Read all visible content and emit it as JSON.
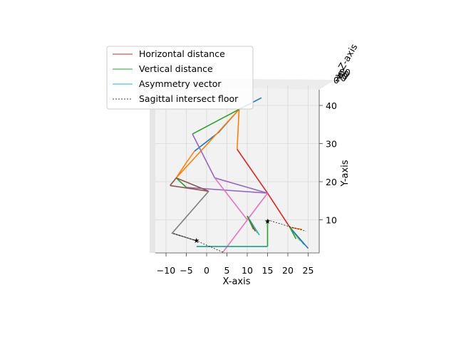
{
  "chart_data": {
    "type": "line",
    "projection": "3d",
    "title": "",
    "xlabel": "X-axis",
    "ylabel": "Y-axis",
    "zlabel": "Z-axis",
    "xlim": [
      -13,
      27
    ],
    "ylim": [
      0,
      45
    ],
    "xticks": [
      "−10",
      "−5",
      "0",
      "5",
      "10",
      "15",
      "20",
      "25"
    ],
    "xtick_values": [
      -10,
      -5,
      0,
      5,
      10,
      15,
      20,
      25
    ],
    "yticks": [
      "10",
      "20",
      "30",
      "40"
    ],
    "ytick_values": [
      10,
      20,
      30,
      40
    ],
    "zticks": [
      "0",
      "20",
      "40",
      "60",
      "80"
    ],
    "grid": true,
    "legend": {
      "placement": "upper-left",
      "entries": [
        {
          "label": "Horizontal distance",
          "color": "#d62728",
          "style": "solid"
        },
        {
          "label": "Vertical distance",
          "color": "#2ca02c",
          "style": "solid"
        },
        {
          "label": "Asymmetry vector",
          "color": "#17becf",
          "style": "solid"
        },
        {
          "label": "Sagittal intersect floor",
          "color": "#000000",
          "style": "dashed"
        }
      ]
    },
    "series": [
      {
        "color": "#1f77b4",
        "points": [
          [
            -3,
            28
          ],
          [
            3,
            33
          ],
          [
            8,
            39
          ],
          [
            13.5,
            42
          ]
        ]
      },
      {
        "color": "#ff7f0e",
        "points": [
          [
            -3,
            28
          ],
          [
            -5,
            25
          ],
          [
            -7.5,
            21
          ],
          [
            8,
            39
          ],
          [
            7.5,
            28.5
          ]
        ]
      },
      {
        "color": "#2ca02c",
        "points": [
          [
            -3.5,
            32.5
          ],
          [
            8,
            39
          ]
        ]
      },
      {
        "color": "#2ca02c",
        "points": [
          [
            -7.5,
            21
          ],
          [
            -5,
            18.5
          ]
        ]
      },
      {
        "color": "#d62728",
        "points": [
          [
            7.5,
            28.5
          ],
          [
            15,
            17
          ],
          [
            20.5,
            8
          ]
        ]
      },
      {
        "color": "#9467bd",
        "points": [
          [
            -3.5,
            32.5
          ],
          [
            2,
            21
          ],
          [
            15,
            17
          ]
        ]
      },
      {
        "color": "#9467bd",
        "points": [
          [
            -5,
            18.5
          ],
          [
            15,
            17
          ]
        ]
      },
      {
        "color": "#8c564b",
        "points": [
          [
            -9,
            19
          ],
          [
            -7.5,
            21
          ],
          [
            0.5,
            17.5
          ],
          [
            -9,
            19
          ]
        ]
      },
      {
        "color": "#e377c2",
        "points": [
          [
            2,
            21
          ],
          [
            10,
            10
          ],
          [
            15,
            17
          ],
          [
            4,
            1.5
          ]
        ]
      },
      {
        "color": "#7f7f7f",
        "points": [
          [
            0.5,
            17.5
          ],
          [
            -8.5,
            6.5
          ],
          [
            -2.5,
            4.5
          ]
        ]
      },
      {
        "color": "#2ca02c",
        "points": [
          [
            15,
            3
          ],
          [
            15,
            10
          ]
        ]
      },
      {
        "color": "#17a087",
        "points": [
          [
            -2.5,
            3
          ],
          [
            15,
            3
          ]
        ]
      },
      {
        "color": "#bcbd22",
        "points": [
          [
            10,
            11
          ],
          [
            12.5,
            6.5
          ]
        ]
      },
      {
        "color": "#17becf",
        "points": [
          [
            10,
            11
          ],
          [
            13,
            6
          ]
        ]
      },
      {
        "color": "#d62728",
        "points": [
          [
            10,
            11
          ],
          [
            12,
            7
          ]
        ]
      },
      {
        "color": "#2ca02c",
        "points": [
          [
            10,
            11
          ],
          [
            11.5,
            7.5
          ]
        ]
      },
      {
        "color": "#ff7f0e",
        "points": [
          [
            20.5,
            8
          ],
          [
            23.5,
            7.5
          ]
        ]
      },
      {
        "color": "#bcbd22",
        "points": [
          [
            20.5,
            8
          ],
          [
            23,
            4.5
          ]
        ]
      },
      {
        "color": "#17becf",
        "points": [
          [
            20.5,
            8
          ],
          [
            24,
            3.5
          ]
        ]
      },
      {
        "color": "#1f77b4",
        "points": [
          [
            20.5,
            8
          ],
          [
            25,
            2.5
          ]
        ]
      },
      {
        "color": "#2ca02c",
        "points": [
          [
            20.5,
            8
          ],
          [
            22,
            5
          ]
        ]
      }
    ],
    "sagittal_floor": [
      {
        "points": [
          [
            15,
            10
          ],
          [
            19.5,
            8.5
          ],
          [
            24.5,
            7
          ]
        ]
      },
      {
        "points": [
          [
            -2.5,
            4.5
          ],
          [
            -8.5,
            6.5
          ]
        ]
      },
      {
        "points": [
          [
            4,
            1.5
          ],
          [
            -2.5,
            4.5
          ]
        ]
      }
    ],
    "star_markers": [
      [
        15,
        9.5
      ],
      [
        -2.5,
        4.5
      ]
    ]
  }
}
